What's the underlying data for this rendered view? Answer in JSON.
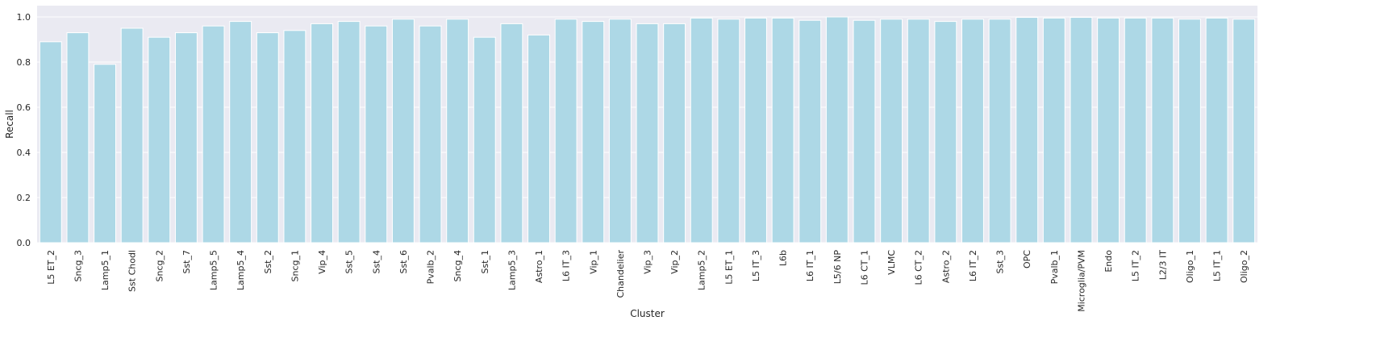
{
  "chart_data": {
    "type": "bar",
    "xlabel": "Cluster",
    "ylabel": "Recall",
    "ylim": [
      0,
      1.05
    ],
    "yticks": [
      "0.0",
      "0.2",
      "0.4",
      "0.6",
      "0.8",
      "1.0"
    ],
    "grid": true,
    "bar_color": "#add8e6",
    "background_color": "#eaeaf2",
    "categories": [
      "L5 ET_2",
      "Sncg_3",
      "Lamp5_1",
      "Sst Chodl",
      "Sncg_2",
      "Sst_7",
      "Lamp5_5",
      "Lamp5_4",
      "Sst_2",
      "Sncg_1",
      "Vip_4",
      "Sst_5",
      "Sst_4",
      "Sst_6",
      "Pvalb_2",
      "Sncg_4",
      "Sst_1",
      "Lamp5_3",
      "Astro_1",
      "L6 IT_3",
      "Vip_1",
      "Chandelier",
      "Vip_3",
      "Vip_2",
      "Lamp5_2",
      "L5 ET_1",
      "L5 IT_3",
      "L6b",
      "L6 IT_1",
      "L5/6 NP",
      "L6 CT_1",
      "VLMC",
      "L6 CT_2",
      "Astro_2",
      "L6 IT_2",
      "Sst_3",
      "OPC",
      "Pvalb_1",
      "Microglia/PVM",
      "Endo",
      "L5 IT_2",
      "L2/3 IT",
      "Oligo_1",
      "L5 IT_1",
      "Oligo_2"
    ],
    "values": [
      0.89,
      0.93,
      0.79,
      0.95,
      0.91,
      0.93,
      0.96,
      0.98,
      0.93,
      0.94,
      0.97,
      0.98,
      0.96,
      0.99,
      0.96,
      0.99,
      0.91,
      0.97,
      0.92,
      0.99,
      0.98,
      0.99,
      0.97,
      0.97,
      0.995,
      0.99,
      0.995,
      0.995,
      0.985,
      1.0,
      0.985,
      0.99,
      0.99,
      0.98,
      0.99,
      0.99,
      0.998,
      0.995,
      0.998,
      0.995,
      0.995,
      0.995,
      0.99,
      0.995,
      0.99
    ]
  }
}
